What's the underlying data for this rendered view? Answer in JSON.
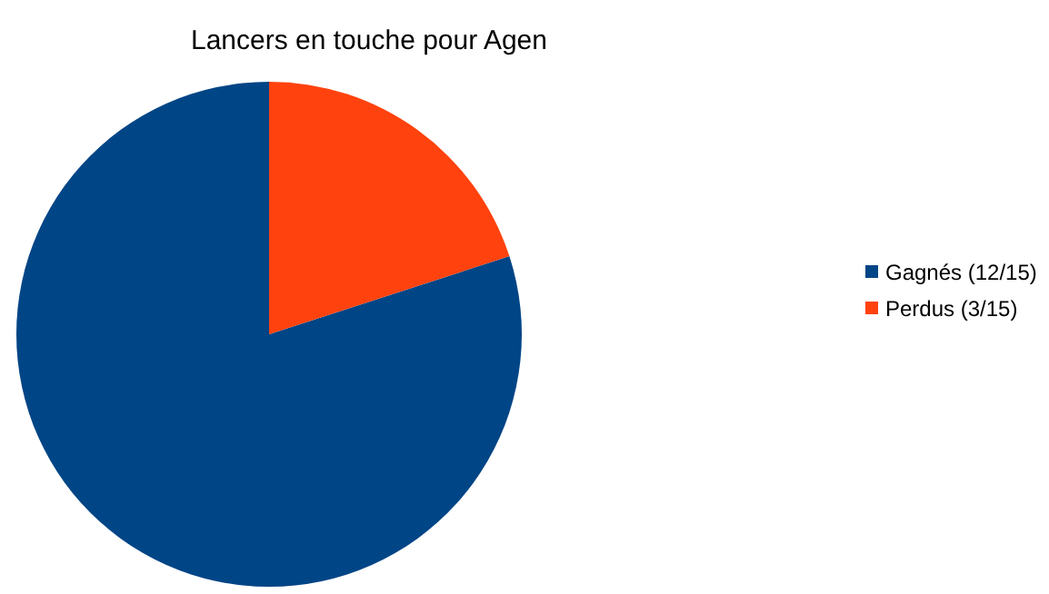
{
  "chart_data": {
    "type": "pie",
    "title": "Lancers en touche pour Agen",
    "categories": [
      "Gagnés (12/15)",
      "Perdus (3/15)"
    ],
    "values": [
      80,
      20
    ],
    "colors": [
      "#004586",
      "#ff420e"
    ],
    "legend": "right"
  }
}
